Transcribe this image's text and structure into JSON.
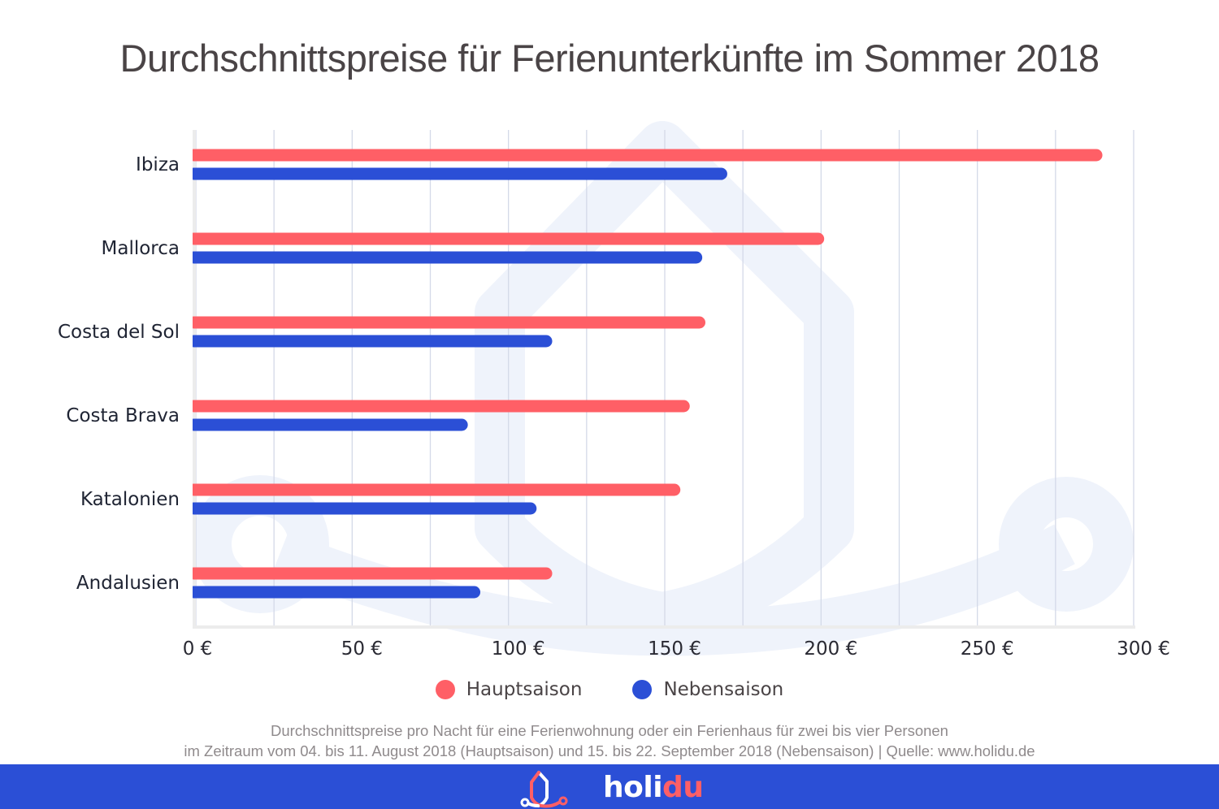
{
  "colors": {
    "primary": "#ff5f66",
    "secondary": "#2b4fd6",
    "footer_bg": "#2b4fd6",
    "grid": "#d4d9e8",
    "watermark": "#eff3fb"
  },
  "chart_data": {
    "type": "bar",
    "orientation": "horizontal",
    "title": "Durchschnittspreise für Ferienunterkünfte im Sommer 2018",
    "xlabel": "",
    "ylabel": "",
    "categories": [
      "Ibiza",
      "Mallorca",
      "Costa del Sol",
      "Costa Brava",
      "Katalonien",
      "Andalusien"
    ],
    "series": [
      {
        "name": "Hauptsaison",
        "color": "#ff5f66",
        "values": [
          290,
          201,
          163,
          158,
          155,
          114
        ]
      },
      {
        "name": "Nebensaison",
        "color": "#2b4fd6",
        "values": [
          170,
          162,
          114,
          87,
          109,
          91
        ]
      }
    ],
    "xlim": [
      0,
      300
    ],
    "x_ticks": [
      0,
      50,
      100,
      150,
      200,
      250,
      300
    ],
    "x_tick_labels": [
      "0 €",
      "50 €",
      "100 €",
      "150 €",
      "200 €",
      "250 €",
      "300 €"
    ],
    "grid_step": 25,
    "grid": true,
    "legend_position": "bottom-center",
    "unit": "€"
  },
  "footnote": {
    "line1": "Durchschnittspreise pro Nacht für eine Ferienwohnung oder ein Ferienhaus für zwei bis vier Personen",
    "line2": "im Zeitraum vom 04. bis 11. August 2018 (Hauptsaison) und 15. bis 22. September 2018 (Nebensaison) | Quelle: www.holidu.de"
  },
  "brand": {
    "name_part1": "holi",
    "name_part2": "du",
    "logo_icon": "house-pin-logo-icon"
  }
}
